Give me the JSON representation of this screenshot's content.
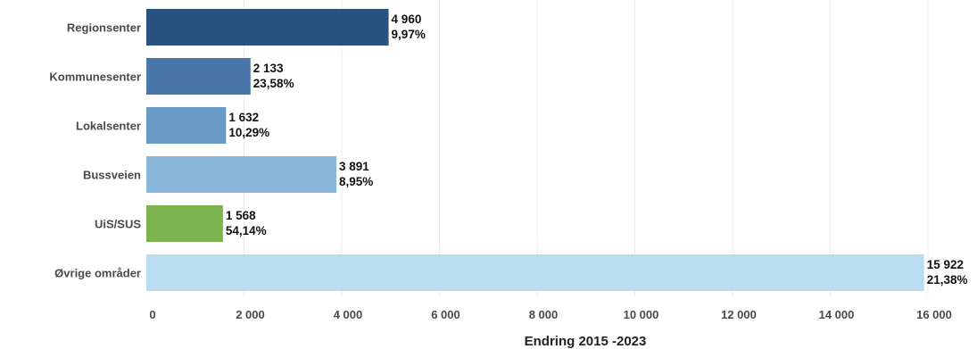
{
  "chart_data": {
    "type": "bar",
    "orientation": "horizontal",
    "categories": [
      "Regionsenter",
      "Kommunesenter",
      "Lokalsenter",
      "Bussveien",
      "UiS/SUS",
      "Øvrige områder"
    ],
    "values": [
      4960,
      2133,
      1632,
      3891,
      1568,
      15922
    ],
    "value_labels": [
      "4 960",
      "2 133",
      "1 632",
      "3 891",
      "1 568",
      "15 922"
    ],
    "percent_labels": [
      "9,97%",
      "23,58%",
      "10,29%",
      "8,95%",
      "54,14%",
      "21,38%"
    ],
    "colors": [
      "#2a5281",
      "#4876a8",
      "#6a9bc6",
      "#8ab8dc",
      "#7db34f",
      "#b9dcf0"
    ],
    "title": "",
    "xlabel": "Endring 2015 -2023",
    "ylabel": "",
    "xlim": [
      0,
      16000
    ],
    "xticks": [
      0,
      2000,
      4000,
      6000,
      8000,
      10000,
      12000,
      14000,
      16000
    ],
    "xtick_labels": [
      "0",
      "2 000",
      "4 000",
      "6 000",
      "8 000",
      "10 000",
      "12 000",
      "14 000",
      "16 000"
    ],
    "grid": true,
    "legend": "none"
  }
}
